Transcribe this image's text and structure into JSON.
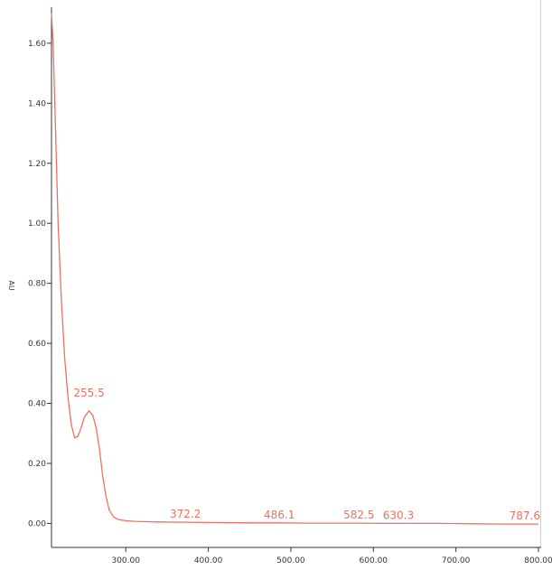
{
  "chart_data": {
    "type": "line",
    "title": "",
    "xlabel": "",
    "ylabel": "AU",
    "xlim": [
      210,
      800
    ],
    "ylim": [
      -0.08,
      1.72
    ],
    "grid": false,
    "legend": "none",
    "line_color": "#f07060",
    "x_ticks": [
      {
        "value": 300,
        "label": "300.00"
      },
      {
        "value": 400,
        "label": "400.00"
      },
      {
        "value": 500,
        "label": "500.00"
      },
      {
        "value": 600,
        "label": "600.00"
      },
      {
        "value": 700,
        "label": "700.00"
      },
      {
        "value": 800,
        "label": "800.00"
      }
    ],
    "y_ticks": [
      {
        "value": 0.0,
        "label": "0.00"
      },
      {
        "value": 0.2,
        "label": "0.20"
      },
      {
        "value": 0.4,
        "label": "0.40"
      },
      {
        "value": 0.6,
        "label": "0.60"
      },
      {
        "value": 0.8,
        "label": "0.80"
      },
      {
        "value": 1.0,
        "label": "1.00"
      },
      {
        "value": 1.2,
        "label": "1.20"
      },
      {
        "value": 1.4,
        "label": "1.40"
      },
      {
        "value": 1.6,
        "label": "1.60"
      }
    ],
    "series": [
      {
        "x": [
          210,
          212,
          215,
          218,
          222,
          226,
          230,
          234,
          238,
          242,
          246,
          250,
          255.5,
          260,
          264,
          268,
          272,
          276,
          280,
          285,
          290,
          295,
          300,
          310,
          320,
          340,
          372.2,
          400,
          450,
          486.1,
          520,
          560,
          582.5,
          610,
          630.3,
          680,
          720,
          760,
          787.6,
          800
        ],
        "y": [
          1.7,
          1.6,
          1.3,
          1.0,
          0.74,
          0.55,
          0.42,
          0.33,
          0.285,
          0.29,
          0.32,
          0.355,
          0.375,
          0.36,
          0.32,
          0.25,
          0.16,
          0.09,
          0.045,
          0.022,
          0.014,
          0.011,
          0.009,
          0.007,
          0.006,
          0.005,
          0.004,
          0.003,
          0.002,
          0.002,
          0.001,
          0.001,
          0.001,
          0.0,
          0.0,
          0.0,
          -0.001,
          -0.002,
          -0.002,
          -0.002
        ]
      }
    ],
    "annotations": [
      {
        "x": 255.5,
        "y": 0.375,
        "text": "255.5"
      },
      {
        "x": 372.2,
        "y": 0.004,
        "text": "372.2"
      },
      {
        "x": 486.1,
        "y": 0.002,
        "text": "486.1"
      },
      {
        "x": 582.5,
        "y": 0.001,
        "text": "582.5"
      },
      {
        "x": 630.3,
        "y": 0.0,
        "text": "630.3"
      },
      {
        "x": 787.6,
        "y": -0.002,
        "text": "787.6"
      }
    ]
  }
}
